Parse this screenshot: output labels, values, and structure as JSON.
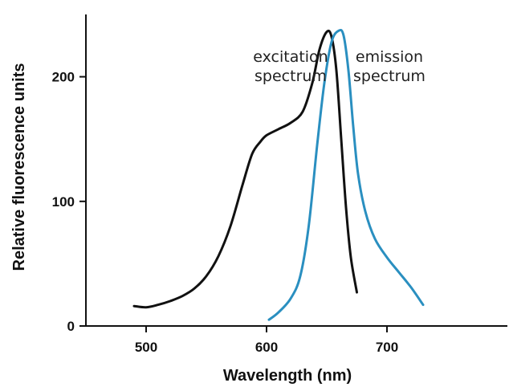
{
  "chart_data": {
    "type": "line",
    "xlabel": "Wavelength (nm)",
    "ylabel": "Relative fluorescence units",
    "xlim": [
      450,
      800
    ],
    "ylim": [
      0,
      250
    ],
    "x_ticks": [
      500,
      600,
      700
    ],
    "y_ticks": [
      0,
      100,
      200
    ],
    "grid": false,
    "series": [
      {
        "color": "#111111",
        "points": [
          [
            490,
            16
          ],
          [
            500,
            15
          ],
          [
            510,
            17
          ],
          [
            520,
            20
          ],
          [
            530,
            24
          ],
          [
            540,
            30
          ],
          [
            550,
            40
          ],
          [
            560,
            56
          ],
          [
            570,
            80
          ],
          [
            580,
            113
          ],
          [
            588,
            138
          ],
          [
            595,
            148
          ],
          [
            600,
            153
          ],
          [
            610,
            158
          ],
          [
            620,
            163
          ],
          [
            630,
            172
          ],
          [
            638,
            195
          ],
          [
            644,
            222
          ],
          [
            650,
            236
          ],
          [
            654,
            232
          ],
          [
            658,
            205
          ],
          [
            662,
            150
          ],
          [
            666,
            95
          ],
          [
            670,
            55
          ],
          [
            675,
            27
          ]
        ]
      },
      {
        "color": "#2a8fc0",
        "points": [
          [
            602,
            5
          ],
          [
            610,
            11
          ],
          [
            620,
            22
          ],
          [
            628,
            40
          ],
          [
            635,
            80
          ],
          [
            642,
            145
          ],
          [
            648,
            195
          ],
          [
            654,
            228
          ],
          [
            660,
            237
          ],
          [
            664,
            233
          ],
          [
            668,
            205
          ],
          [
            672,
            160
          ],
          [
            676,
            122
          ],
          [
            682,
            92
          ],
          [
            690,
            70
          ],
          [
            700,
            55
          ],
          [
            710,
            43
          ],
          [
            720,
            31
          ],
          [
            730,
            17
          ]
        ]
      }
    ],
    "annotations": [
      {
        "lines": [
          "excitation",
          "spectrum"
        ],
        "at": [
          620,
          212
        ]
      },
      {
        "lines": [
          "emission",
          "spectrum"
        ],
        "at": [
          702,
          212
        ]
      }
    ]
  }
}
